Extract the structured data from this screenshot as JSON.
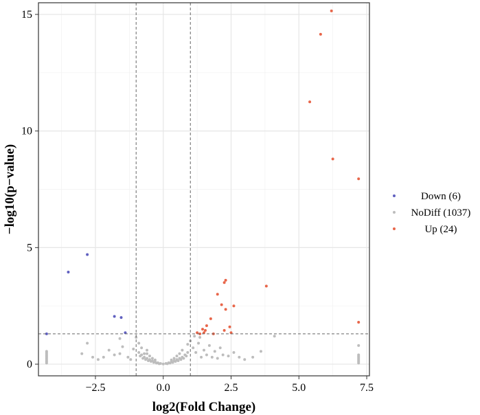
{
  "chart_data": {
    "type": "scatter",
    "title": "",
    "xlabel": "log2(Fold Change)",
    "ylabel": "−log10(p−value)",
    "xlim": [
      -4.6,
      7.6
    ],
    "ylim": [
      -0.5,
      15.5
    ],
    "x_ticks": [
      -2.5,
      0.0,
      2.5,
      5.0,
      7.5
    ],
    "x_tick_labels": [
      "−2.5",
      "0.0",
      "2.5",
      "5.0",
      "7.5"
    ],
    "y_ticks": [
      0,
      5,
      10,
      15
    ],
    "y_tick_labels": [
      "0",
      "5",
      "10",
      "15"
    ],
    "grid": true,
    "legend_position": "right",
    "thresholds": {
      "log2fc": [
        -1,
        1
      ],
      "neg_log10_p": 1.3
    },
    "colors": {
      "Down": "#6060c0",
      "NoDiff": "#bdbdbd",
      "Up": "#e8664a",
      "threshold_line": "#666666",
      "grid": "#e6e6e6"
    },
    "series": [
      {
        "name": "Down (6)",
        "points": [
          [
            -4.3,
            1.3
          ],
          [
            -3.5,
            3.95
          ],
          [
            -2.8,
            4.7
          ],
          [
            -1.8,
            2.05
          ],
          [
            -1.55,
            2.0
          ],
          [
            -1.4,
            1.35
          ]
        ]
      },
      {
        "name": "NoDiff (1037)",
        "points": [
          [
            -4.3,
            0.05
          ],
          [
            -4.3,
            0.1
          ],
          [
            -4.3,
            0.15
          ],
          [
            -4.3,
            0.2
          ],
          [
            -4.3,
            0.25
          ],
          [
            -4.3,
            0.3
          ],
          [
            -4.3,
            0.35
          ],
          [
            -4.3,
            0.4
          ],
          [
            -4.3,
            0.45
          ],
          [
            -4.3,
            0.5
          ],
          [
            -4.3,
            0.55
          ],
          [
            7.2,
            0.05
          ],
          [
            7.2,
            0.1
          ],
          [
            7.2,
            0.15
          ],
          [
            7.2,
            0.2
          ],
          [
            7.2,
            0.25
          ],
          [
            7.2,
            0.3
          ],
          [
            7.2,
            0.35
          ],
          [
            7.2,
            0.4
          ],
          [
            7.2,
            0.8
          ],
          [
            -3.0,
            0.45
          ],
          [
            -2.6,
            0.3
          ],
          [
            -2.2,
            0.3
          ],
          [
            -2.0,
            0.6
          ],
          [
            -1.8,
            0.4
          ],
          [
            -1.6,
            0.45
          ],
          [
            -1.5,
            0.75
          ],
          [
            -1.3,
            0.3
          ],
          [
            -1.2,
            0.2
          ],
          [
            -2.4,
            0.2
          ],
          [
            -2.8,
            0.9
          ],
          [
            -1.0,
            1.15
          ],
          [
            -0.9,
            0.9
          ],
          [
            -1.1,
            0.65
          ],
          [
            -0.8,
            0.7
          ],
          [
            -0.7,
            0.45
          ],
          [
            -1.6,
            1.1
          ],
          [
            -0.9,
            0.5
          ],
          [
            -0.8,
            0.4
          ],
          [
            -0.7,
            0.3
          ],
          [
            -0.6,
            0.25
          ],
          [
            -0.5,
            0.2
          ],
          [
            -0.4,
            0.15
          ],
          [
            -0.3,
            0.1
          ],
          [
            -0.2,
            0.06
          ],
          [
            -0.1,
            0.03
          ],
          [
            0.0,
            0.01
          ],
          [
            0.1,
            0.03
          ],
          [
            0.2,
            0.06
          ],
          [
            0.3,
            0.1
          ],
          [
            0.4,
            0.15
          ],
          [
            0.5,
            0.2
          ],
          [
            0.6,
            0.25
          ],
          [
            0.7,
            0.3
          ],
          [
            0.8,
            0.4
          ],
          [
            0.9,
            0.5
          ],
          [
            -0.85,
            0.35
          ],
          [
            -0.75,
            0.25
          ],
          [
            -0.65,
            0.2
          ],
          [
            -0.55,
            0.15
          ],
          [
            -0.45,
            0.12
          ],
          [
            -0.35,
            0.08
          ],
          [
            -0.25,
            0.05
          ],
          [
            -0.15,
            0.02
          ],
          [
            0.15,
            0.02
          ],
          [
            0.25,
            0.05
          ],
          [
            0.35,
            0.08
          ],
          [
            0.45,
            0.12
          ],
          [
            0.55,
            0.15
          ],
          [
            0.65,
            0.2
          ],
          [
            0.75,
            0.25
          ],
          [
            0.85,
            0.35
          ],
          [
            -0.6,
            0.45
          ],
          [
            -0.5,
            0.35
          ],
          [
            -0.4,
            0.25
          ],
          [
            -0.3,
            0.18
          ],
          [
            0.3,
            0.18
          ],
          [
            0.4,
            0.25
          ],
          [
            0.5,
            0.35
          ],
          [
            0.6,
            0.45
          ],
          [
            0.9,
            0.85
          ],
          [
            1.0,
            1.0
          ],
          [
            1.1,
            0.7
          ],
          [
            1.2,
            0.5
          ],
          [
            1.3,
            0.9
          ],
          [
            1.4,
            0.3
          ],
          [
            1.5,
            0.6
          ],
          [
            1.6,
            0.4
          ],
          [
            1.7,
            0.8
          ],
          [
            1.8,
            0.3
          ],
          [
            1.9,
            0.55
          ],
          [
            2.0,
            0.25
          ],
          [
            2.1,
            0.7
          ],
          [
            2.2,
            0.4
          ],
          [
            2.4,
            0.35
          ],
          [
            2.6,
            0.5
          ],
          [
            2.8,
            0.3
          ],
          [
            3.0,
            0.2
          ],
          [
            3.3,
            0.3
          ],
          [
            3.6,
            0.55
          ],
          [
            4.1,
            1.2
          ],
          [
            1.15,
            1.2
          ],
          [
            1.35,
            1.15
          ],
          [
            0.7,
            0.6
          ],
          [
            -0.6,
            0.6
          ]
        ]
      },
      {
        "name": "Up (24)",
        "points": [
          [
            6.2,
            15.15
          ],
          [
            5.8,
            14.15
          ],
          [
            5.4,
            11.25
          ],
          [
            6.25,
            8.8
          ],
          [
            7.2,
            7.95
          ],
          [
            7.2,
            1.8
          ],
          [
            3.8,
            3.35
          ],
          [
            2.3,
            3.6
          ],
          [
            2.25,
            3.5
          ],
          [
            2.0,
            3.0
          ],
          [
            2.15,
            2.55
          ],
          [
            2.6,
            2.5
          ],
          [
            2.3,
            2.35
          ],
          [
            1.75,
            1.95
          ],
          [
            1.6,
            1.65
          ],
          [
            2.45,
            1.6
          ],
          [
            1.45,
            1.5
          ],
          [
            1.5,
            1.35
          ],
          [
            1.35,
            1.3
          ],
          [
            1.25,
            1.35
          ],
          [
            1.85,
            1.3
          ],
          [
            2.25,
            1.45
          ],
          [
            2.5,
            1.35
          ],
          [
            1.55,
            1.45
          ]
        ]
      }
    ]
  }
}
